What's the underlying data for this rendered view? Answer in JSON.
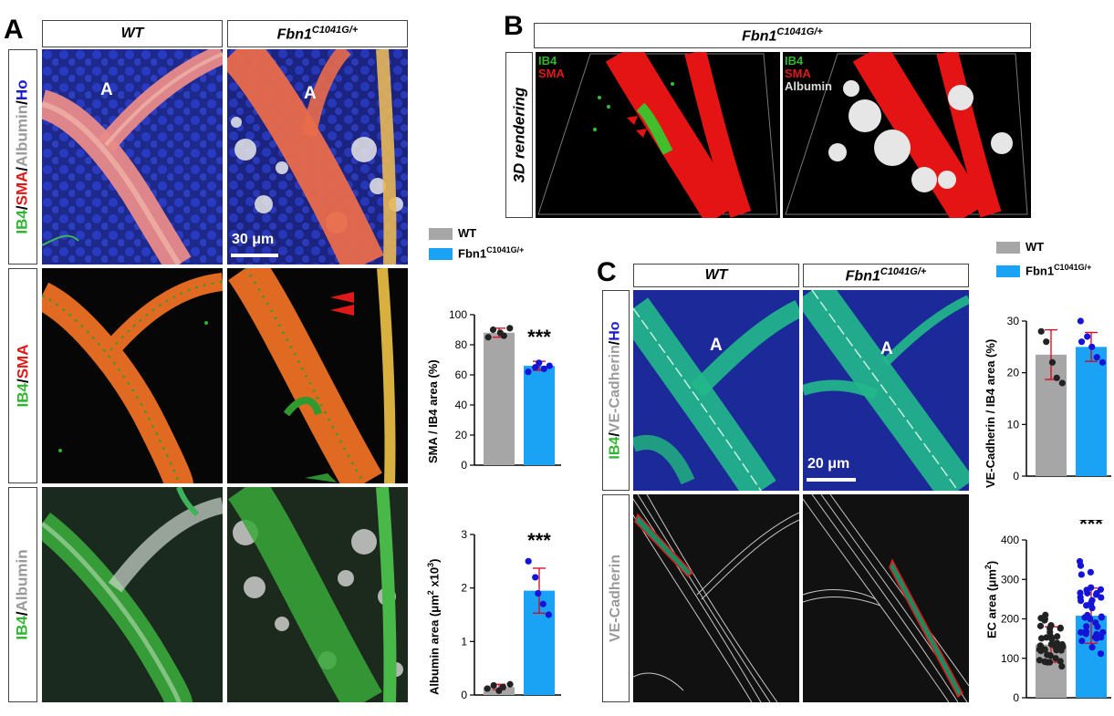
{
  "panels": {
    "a": {
      "letter": "A",
      "col_wt": "WT",
      "col_mut_base": "Fbn1",
      "col_mut_sup": "C1041G/+",
      "row1": {
        "ib4": "IB4",
        "sep1": "/",
        "sma": "SMA",
        "sep2": "/",
        "albumin": "Albumin",
        "sep3": "/",
        "ho": "Ho"
      },
      "row2": {
        "ib4": "IB4",
        "sep": "/",
        "sma": "SMA"
      },
      "row3": {
        "ib4": "IB4",
        "sep": "/",
        "albumin": "Albumin"
      },
      "artery_label": "A",
      "scale_bar": "30 μm"
    },
    "b": {
      "letter": "B",
      "header_base": "Fbn1",
      "header_sup": "C1041G/+",
      "row_label": "3D rendering",
      "left_overlay": {
        "ib4": "IB4",
        "sma": "SMA"
      },
      "right_overlay": {
        "ib4": "IB4",
        "sma": "SMA",
        "albumin": "Albumin"
      }
    },
    "c": {
      "letter": "C",
      "col_wt": "WT",
      "col_mut_base": "Fbn1",
      "col_mut_sup": "C1041G/+",
      "row1": {
        "ib4": "IB4",
        "sep1": "/",
        "vecad": "VE-Cadherin",
        "sep2": "/",
        "ho": "Ho"
      },
      "row2": {
        "vecad": "VE-Cadherin"
      },
      "artery_label": "A",
      "scale_bar": "20 μm"
    }
  },
  "legend_a": {
    "wt": "WT",
    "mut_base": "Fbn1",
    "mut_sup": "C1041G/+"
  },
  "legend_c": {
    "wt": "WT",
    "mut_base": "Fbn1",
    "mut_sup": "C1041G/+"
  },
  "colors": {
    "wt": "#a6a6a6",
    "mutant": "#1aa3f5",
    "error": "#e0001a",
    "dot_wt": "#222222",
    "dot_mut": "#1414d8"
  },
  "chart_data": [
    {
      "id": "sma",
      "type": "bar",
      "categories": [
        "WT",
        "Fbn1C1041G/+"
      ],
      "values": [
        88,
        66
      ],
      "errors": [
        3,
        3
      ],
      "points": [
        [
          85,
          90,
          88,
          86,
          91
        ],
        [
          62,
          65,
          68,
          64,
          66
        ]
      ],
      "ylabel": "SMA / IB4 area (%)",
      "ylim": [
        0,
        100
      ],
      "yticks": [
        "0",
        "20",
        "40",
        "60",
        "80",
        "100"
      ],
      "annotation": "***"
    },
    {
      "id": "albumin",
      "type": "bar",
      "categories": [
        "WT",
        "Fbn1C1041G/+"
      ],
      "values": [
        0.15,
        1.95
      ],
      "errors": [
        0.05,
        0.42
      ],
      "points": [
        [
          0.12,
          0.18,
          0.08,
          0.15,
          0.2
        ],
        [
          2.5,
          2.2,
          1.9,
          1.7,
          1.5
        ]
      ],
      "ylabel_base": "Albumin area (μm",
      "ylabel_sup1": "2",
      "ylabel_mid": " x10",
      "ylabel_sup2": "3",
      "ylabel_end": ")",
      "ylim": [
        0,
        3
      ],
      "yticks": [
        "0",
        "1",
        "2",
        "3"
      ],
      "annotation": "***"
    },
    {
      "id": "vecad",
      "type": "bar",
      "categories": [
        "WT",
        "Fbn1C1041G/+"
      ],
      "values": [
        23.5,
        25
      ],
      "errors": [
        4.8,
        2.8
      ],
      "points": [
        [
          28,
          26,
          22,
          19,
          18
        ],
        [
          30,
          27,
          25,
          23,
          22,
          26
        ]
      ],
      "ylabel": "VE-Cadherin / IB4 area (%)",
      "ylim": [
        0,
        30
      ],
      "yticks": [
        "0",
        "10",
        "20",
        "30"
      ]
    },
    {
      "id": "ec",
      "type": "bar",
      "categories": [
        "WT",
        "Fbn1C1041G/+"
      ],
      "values": [
        135,
        208
      ],
      "errors": [
        45,
        70
      ],
      "ylabel_base": "EC area (μm",
      "ylabel_sup": "2",
      "ylabel_end": ")",
      "ylim": [
        0,
        400
      ],
      "yticks": [
        "0",
        "100",
        "200",
        "300",
        "400"
      ],
      "annotation": "***"
    }
  ]
}
